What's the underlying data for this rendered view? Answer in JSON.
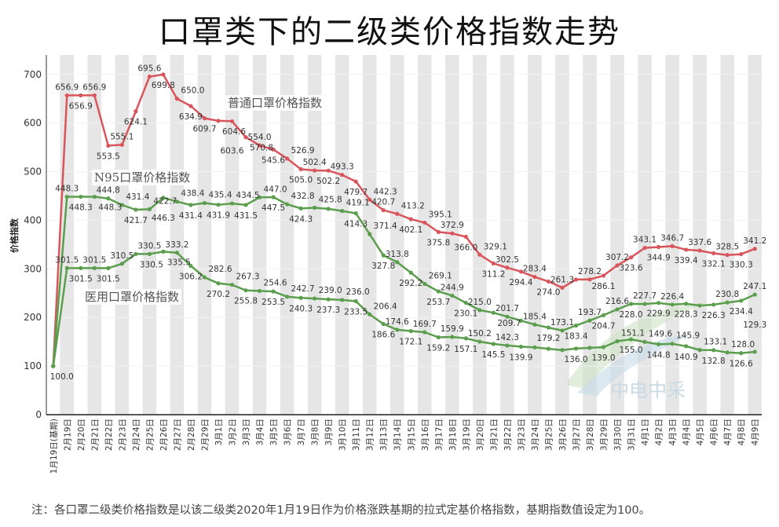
{
  "title": "口罩类下的二级类价格指数走势",
  "footnote": "注：各口罩二级类价格指数是以该二级类2020年1月19日作为价格涨跌基期的拉式定基价格指数，基期指数值设定为100。",
  "watermark": {
    "text": "中电中采"
  },
  "chart_data": {
    "type": "line",
    "title": "口罩类下的二级类价格指数走势",
    "xlabel": "",
    "ylabel": "价格指数",
    "ylim": [
      0,
      740
    ],
    "yticks": [
      0,
      100,
      200,
      300,
      400,
      500,
      600,
      700
    ],
    "grid": "alternating vertical bands",
    "legend": "inline labels",
    "categories": [
      "1月19日(基期)",
      "2月19日",
      "2月20日",
      "2月21日",
      "2月22日",
      "2月23日",
      "2月24日",
      "2月25日",
      "2月26日",
      "2月27日",
      "2月28日",
      "2月29日",
      "3月1日",
      "3月2日",
      "3月3日",
      "3月4日",
      "3月5日",
      "3月6日",
      "3月7日",
      "3月8日",
      "3月9日",
      "3月10日",
      "3月11日",
      "3月12日",
      "3月13日",
      "3月14日",
      "3月15日",
      "3月16日",
      "3月17日",
      "3月18日",
      "3月19日",
      "3月20日",
      "3月21日",
      "3月22日",
      "3月23日",
      "3月24日",
      "3月25日",
      "3月26日",
      "3月27日",
      "3月28日",
      "3月29日",
      "3月30日",
      "3月31日",
      "4月1日",
      "4月2日",
      "4月3日",
      "4月4日",
      "4月5日",
      "4月6日",
      "4月7日",
      "4月8日",
      "4月9日"
    ],
    "series": [
      {
        "name": "普通口罩价格指数",
        "color": "#d9555c",
        "values": [
          100.0,
          656.9,
          656.9,
          656.9,
          553.5,
          555.1,
          624.1,
          695.6,
          699.8,
          650.0,
          634.9,
          609.7,
          604.6,
          603.6,
          570.8,
          554.0,
          545.6,
          526.9,
          505.0,
          502.4,
          502.2,
          493.3,
          479.7,
          442.3,
          420.7,
          413.2,
          402.1,
          395.1,
          375.8,
          372.9,
          366.0,
          329.1,
          311.2,
          302.5,
          294.4,
          283.4,
          274.0,
          261.3,
          278.0,
          278.2,
          286.1,
          307.2,
          323.6,
          343.1,
          344.9,
          346.7,
          339.4,
          337.6,
          332.1,
          328.5,
          330.3,
          341.2
        ],
        "labels": [
          "100.0",
          "656.9",
          "656.9",
          "656.9",
          "553.5",
          "555.1",
          "624.1",
          "695.6",
          "699.8",
          "650.0",
          "634.9",
          "609.7",
          "604.6",
          "603.6",
          "570.8",
          "554.0",
          "545.6",
          "526.9",
          "505.0",
          "502.4",
          "502.2",
          "493.3",
          "479.7",
          "442.3",
          "420.7",
          "413.2",
          "402.1",
          "395.1",
          "375.8",
          "372.9",
          "366.0",
          "329.1",
          "311.2",
          "302.5",
          "294.4",
          "283.4",
          "274.0",
          "261.3",
          null,
          "278.2",
          "286.1",
          "307.2",
          "323.6",
          "343.1",
          "344.9",
          "346.7",
          "339.4",
          "337.6",
          "332.1",
          "328.5",
          "330.3",
          "341.2"
        ]
      },
      {
        "name": "N95口罩价格指数",
        "color": "#5b9e4d",
        "values": [
          100.0,
          448.3,
          448.3,
          448.3,
          444.8,
          431.4,
          421.7,
          422.7,
          446.3,
          438.4,
          431.4,
          435.4,
          431.9,
          434.5,
          431.5,
          447.0,
          447.5,
          432.8,
          424.3,
          425.8,
          423.5,
          419.1,
          414.3,
          371.4,
          327.8,
          313.8,
          292.2,
          269.1,
          253.7,
          244.9,
          230.1,
          215.0,
          209.7,
          201.7,
          193.5,
          185.4,
          179.2,
          173.1,
          183.4,
          193.7,
          204.7,
          216.6,
          228.0,
          227.7,
          229.9,
          226.4,
          228.3,
          224.5,
          226.3,
          230.8,
          234.4,
          247.1
        ],
        "labels": [
          null,
          "448.3",
          "448.3",
          "448.3",
          "444.8",
          "431.4",
          "421.7",
          "422.7",
          "446.3",
          "438.4",
          "431.4",
          "435.4",
          "431.9",
          "434.5",
          "431.5",
          "447.0",
          "447.5",
          "432.8",
          "424.3",
          "425.8",
          null,
          "419.1",
          "414.3",
          "371.4",
          "327.8",
          "313.8",
          "292.2",
          "269.1",
          "253.7",
          "244.9",
          "230.1",
          "215.0",
          "209.7",
          "201.7",
          null,
          "185.4",
          "179.2",
          "173.1",
          "183.4",
          "193.7",
          "204.7",
          "216.6",
          "228.0",
          "227.7",
          "229.9",
          "226.4",
          "228.3",
          null,
          "226.3",
          "230.8",
          "234.4",
          "247.1"
        ]
      },
      {
        "name": "医用口罩价格指数",
        "color": "#5b9e4d",
        "values": [
          100.0,
          301.5,
          301.5,
          301.5,
          301.5,
          310.5,
          330.5,
          330.5,
          335.5,
          333.2,
          306.2,
          282.6,
          270.2,
          267.3,
          255.8,
          254.6,
          253.5,
          242.7,
          240.3,
          239.0,
          237.3,
          236.0,
          233.5,
          206.4,
          186.6,
          174.6,
          172.1,
          169.7,
          159.2,
          159.9,
          157.1,
          150.2,
          145.5,
          142.3,
          139.9,
          138.5,
          135.5,
          133.0,
          136.0,
          137.5,
          139.0,
          151.1,
          155.0,
          149.6,
          144.8,
          145.9,
          140.9,
          133.1,
          132.8,
          128.0,
          126.6,
          129.3
        ],
        "labels": [
          null,
          "301.5",
          "301.5",
          "301.5",
          "301.5",
          "310.5",
          "330.5",
          "330.5",
          "335.5",
          "333.2",
          "306.2",
          "282.6",
          "270.2",
          "267.3",
          "255.8",
          "254.6",
          "253.5",
          "242.7",
          "240.3",
          "239.0",
          "237.3",
          "236.0",
          "233.5",
          "206.4",
          "186.6",
          "174.6",
          "172.1",
          "169.7",
          "159.2",
          "159.9",
          "157.1",
          "150.2",
          "145.5",
          "142.3",
          "139.9",
          null,
          null,
          null,
          "136.0",
          null,
          "139.0",
          "151.1",
          "155.0",
          "149.6",
          "144.8",
          "145.9",
          "140.9",
          "133.1",
          "132.8",
          "128.0",
          "126.6",
          "129.3"
        ]
      }
    ]
  }
}
